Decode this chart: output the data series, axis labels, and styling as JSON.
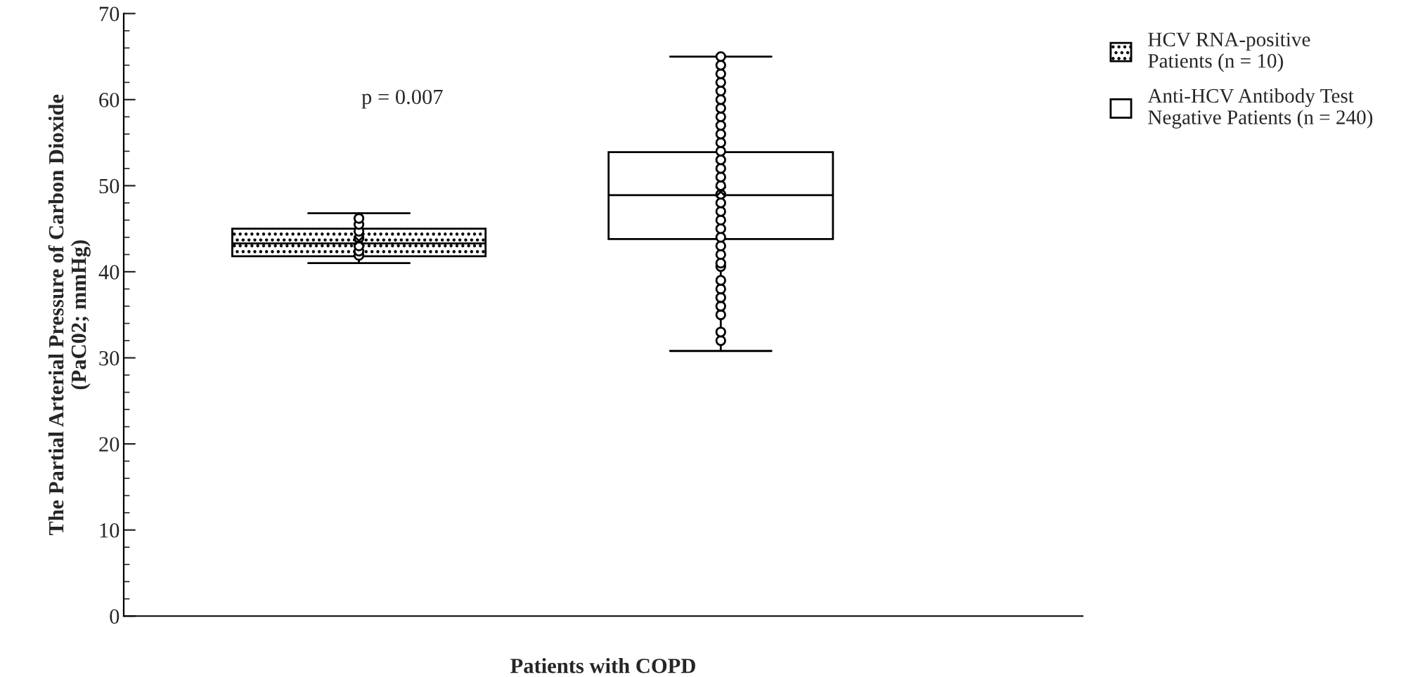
{
  "chart_data": {
    "type": "box",
    "ylabel": "The Partial Arterial Pressure of Carbon Dioxide\n(PaC02; mmHg)",
    "xlabel": "Patients with COPD",
    "categories": [
      null,
      null
    ],
    "ylim": [
      0,
      70
    ],
    "yticks": [
      0,
      10,
      20,
      30,
      40,
      50,
      60,
      70
    ],
    "grid": false,
    "legend": "top right",
    "annotations": [
      "p = 0.007"
    ],
    "series": [
      {
        "name": "HCV RNA-positive\nPatients (n = 10)",
        "color": "#000000",
        "boxes": [
          {
            "low": 41,
            "q1": 41.8,
            "median": 43.3,
            "q3": 45,
            "high": 46.8,
            "mean": 43.6,
            "outliers": [
              41.9,
              42.4,
              43,
              43.9,
              44.7,
              45.5,
              46.2
            ]
          },
          null
        ]
      },
      {
        "name": "Anti-HCV Antibody Test\nNegative Patients (n = 240)",
        "color": "#ffffff",
        "boxes": [
          null,
          {
            "low": 30.8,
            "q1": 43.8,
            "median": 48.9,
            "q3": 53.9,
            "high": 65,
            "mean": 49.3,
            "outliers": [
              32,
              33,
              35,
              36,
              37,
              38,
              39,
              40.6,
              41,
              42,
              43,
              44,
              45,
              46,
              47,
              48,
              49,
              50,
              51,
              52,
              53,
              54,
              55,
              56,
              57,
              58,
              59,
              60,
              61,
              62,
              63,
              64,
              65
            ]
          }
        ]
      }
    ]
  }
}
